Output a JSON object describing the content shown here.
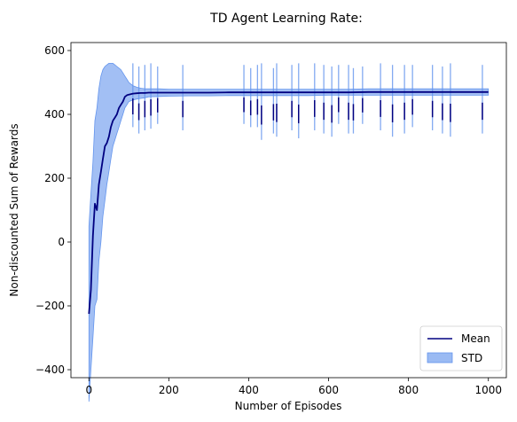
{
  "chart_data": {
    "type": "line",
    "title": "TD Agent Learning Rate:",
    "xlabel": "Number of Episodes",
    "ylabel": "Non-discounted Sum of Rewards",
    "xlim": [
      -45,
      1045
    ],
    "ylim": [
      -425,
      625
    ],
    "xticks": [
      0,
      200,
      400,
      600,
      800,
      1000
    ],
    "yticks": [
      -400,
      -200,
      0,
      200,
      400,
      600
    ],
    "grid": false,
    "legend_position": "lower-right",
    "colors": {
      "mean": "#000080",
      "std": "#6495ed"
    },
    "series": [
      {
        "name": "Mean",
        "x": [
          0,
          5,
          10,
          15,
          20,
          25,
          30,
          35,
          40,
          45,
          50,
          55,
          60,
          65,
          70,
          75,
          80,
          85,
          90,
          95,
          100,
          110,
          120,
          130,
          140,
          150,
          175,
          200,
          250,
          300,
          350,
          400,
          450,
          500,
          550,
          600,
          650,
          700,
          750,
          800,
          850,
          900,
          950,
          1000
        ],
        "values": [
          -225,
          -150,
          20,
          120,
          100,
          180,
          220,
          260,
          300,
          310,
          330,
          360,
          380,
          390,
          400,
          420,
          430,
          440,
          455,
          460,
          462,
          465,
          466,
          467,
          467,
          468,
          468,
          468,
          468,
          468,
          469,
          469,
          469,
          469,
          469,
          469,
          469,
          470,
          470,
          470,
          470,
          470,
          470,
          470
        ]
      },
      {
        "name": "STD",
        "x": [
          0,
          5,
          10,
          15,
          20,
          25,
          30,
          35,
          40,
          45,
          50,
          55,
          60,
          65,
          70,
          75,
          80,
          85,
          90,
          95,
          100,
          110,
          120,
          130,
          140,
          150,
          175,
          200,
          250,
          300,
          350,
          400,
          450,
          500,
          550,
          600,
          650,
          700,
          750,
          800,
          850,
          900,
          950,
          1000
        ],
        "lower": [
          -500,
          -400,
          -300,
          -200,
          -180,
          -60,
          0,
          80,
          130,
          180,
          220,
          260,
          300,
          320,
          340,
          360,
          380,
          400,
          420,
          430,
          440,
          445,
          448,
          450,
          452,
          455,
          456,
          457,
          458,
          458,
          459,
          459,
          459,
          459,
          459,
          460,
          460,
          460,
          460,
          460,
          460,
          460,
          460,
          460
        ],
        "upper": [
          50,
          150,
          250,
          380,
          420,
          480,
          520,
          540,
          550,
          555,
          560,
          560,
          560,
          555,
          550,
          545,
          540,
          530,
          520,
          510,
          500,
          490,
          485,
          482,
          480,
          480,
          480,
          479,
          479,
          479,
          479,
          479,
          479,
          479,
          479,
          479,
          479,
          480,
          480,
          480,
          480,
          480,
          480,
          480
        ]
      }
    ],
    "spikes": [
      {
        "x": 110,
        "lo": 360,
        "hi": 560
      },
      {
        "x": 125,
        "lo": 340,
        "hi": 550
      },
      {
        "x": 140,
        "lo": 350,
        "hi": 555
      },
      {
        "x": 155,
        "lo": 355,
        "hi": 560
      },
      {
        "x": 172,
        "lo": 370,
        "hi": 550
      },
      {
        "x": 235,
        "lo": 350,
        "hi": 555
      },
      {
        "x": 388,
        "lo": 370,
        "hi": 555
      },
      {
        "x": 405,
        "lo": 360,
        "hi": 545
      },
      {
        "x": 422,
        "lo": 360,
        "hi": 555
      },
      {
        "x": 432,
        "lo": 320,
        "hi": 560
      },
      {
        "x": 462,
        "lo": 340,
        "hi": 545
      },
      {
        "x": 470,
        "lo": 330,
        "hi": 560
      },
      {
        "x": 508,
        "lo": 350,
        "hi": 555
      },
      {
        "x": 525,
        "lo": 325,
        "hi": 560
      },
      {
        "x": 565,
        "lo": 350,
        "hi": 560
      },
      {
        "x": 588,
        "lo": 340,
        "hi": 555
      },
      {
        "x": 608,
        "lo": 330,
        "hi": 550
      },
      {
        "x": 625,
        "lo": 370,
        "hi": 555
      },
      {
        "x": 650,
        "lo": 340,
        "hi": 555
      },
      {
        "x": 662,
        "lo": 340,
        "hi": 545
      },
      {
        "x": 685,
        "lo": 370,
        "hi": 550
      },
      {
        "x": 730,
        "lo": 350,
        "hi": 560
      },
      {
        "x": 760,
        "lo": 330,
        "hi": 555
      },
      {
        "x": 790,
        "lo": 340,
        "hi": 555
      },
      {
        "x": 810,
        "lo": 360,
        "hi": 555
      },
      {
        "x": 860,
        "lo": 350,
        "hi": 555
      },
      {
        "x": 885,
        "lo": 340,
        "hi": 550
      },
      {
        "x": 905,
        "lo": 330,
        "hi": 560
      },
      {
        "x": 985,
        "lo": 340,
        "hi": 555
      }
    ],
    "legend": {
      "mean_label": "Mean",
      "std_label": "STD"
    }
  }
}
